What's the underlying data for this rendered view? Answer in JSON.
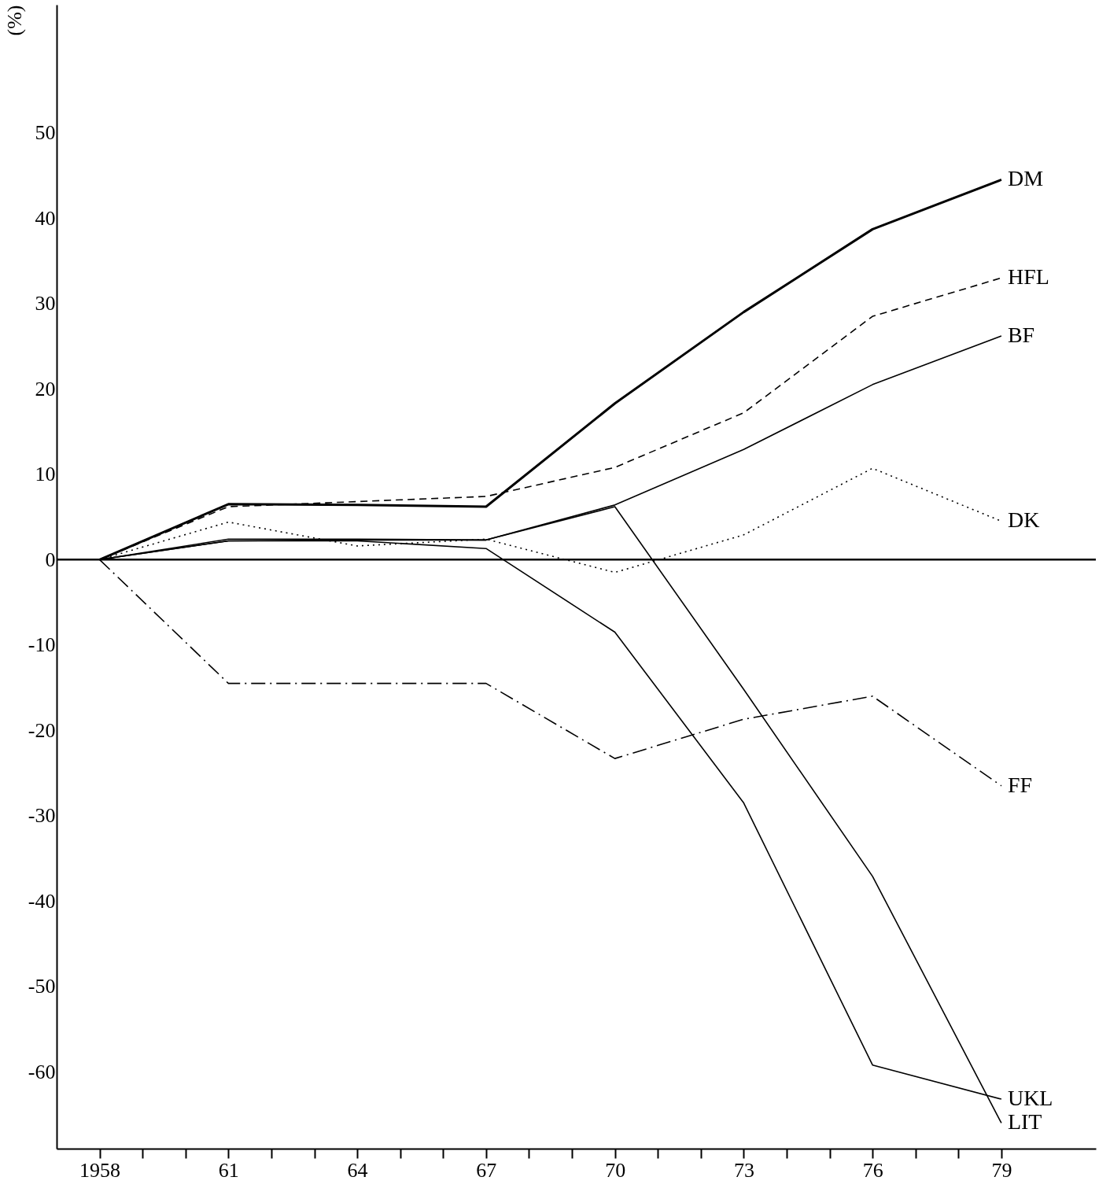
{
  "chart_data": {
    "type": "line",
    "ylabel": "(%)",
    "x": [
      1958,
      1961,
      1964,
      1967,
      1970,
      1973,
      1976,
      1979
    ],
    "series": [
      {
        "name": "DM",
        "color": "#000000",
        "line_style": "solid",
        "values": [
          0,
          6.5,
          6.4,
          6.2,
          18.3,
          29,
          38.7,
          44.5
        ]
      },
      {
        "name": "HFL",
        "color": "#000000",
        "line_style": "dashed",
        "values": [
          0,
          6.2,
          6.8,
          7.4,
          10.8,
          17.2,
          28.5,
          33
        ]
      },
      {
        "name": "BF",
        "color": "#000000",
        "line_style": "solid",
        "values": [
          0,
          2.4,
          2.4,
          2.3,
          6.4,
          12.9,
          20.5,
          26.2
        ]
      },
      {
        "name": "DK",
        "color": "#000000",
        "line_style": "dotted",
        "values": [
          0,
          4.4,
          1.6,
          2.4,
          -1.5,
          2.9,
          10.7,
          4.5
        ]
      },
      {
        "name": "FF",
        "color": "#000000",
        "line_style": "dashdot",
        "values": [
          0,
          -14.5,
          -14.5,
          -14.5,
          -23.3,
          -18.7,
          -16,
          -26.5
        ]
      },
      {
        "name": "UKL",
        "color": "#000000",
        "line_style": "solid",
        "values": [
          0,
          2.2,
          2.2,
          1.3,
          -8.5,
          -28.5,
          -59.2,
          -63.2
        ]
      },
      {
        "name": "LIT",
        "color": "#000000",
        "line_style": "solid",
        "values": [
          0,
          2.2,
          2.3,
          2.3,
          6.2,
          -15.2,
          -37.1,
          -66
        ]
      }
    ],
    "xlim": [
      1957,
      1981.2
    ],
    "ylim": [
      -69,
      65
    ],
    "xticks": [
      1958,
      {
        "value": 1959,
        "label": null
      },
      {
        "value": 1960,
        "label": null
      },
      {
        "value": 1961,
        "label": "61"
      },
      {
        "value": 1962,
        "label": null
      },
      {
        "value": 1963,
        "label": null
      },
      {
        "value": 1964,
        "label": "64"
      },
      {
        "value": 1965,
        "label": null
      },
      {
        "value": 1966,
        "label": null
      },
      {
        "value": 1967,
        "label": "67"
      },
      {
        "value": 1968,
        "label": null
      },
      {
        "value": 1969,
        "label": null
      },
      {
        "value": 1970,
        "label": "70"
      },
      {
        "value": 1971,
        "label": null
      },
      {
        "value": 1972,
        "label": null
      },
      {
        "value": 1973,
        "label": "73"
      },
      {
        "value": 1974,
        "label": null
      },
      {
        "value": 1975,
        "label": null
      },
      {
        "value": 1976,
        "label": "76"
      },
      {
        "value": 1977,
        "label": null
      },
      {
        "value": 1978,
        "label": null
      },
      {
        "value": 1979,
        "label": "79"
      }
    ],
    "yticks": [
      -60,
      -50,
      -40,
      -30,
      -20,
      -10,
      0,
      10,
      20,
      30,
      40,
      50
    ],
    "ref_lines": [
      {
        "axis": "y",
        "value": 0,
        "color": "#000000",
        "line_style": "solid"
      }
    ],
    "grid": false,
    "legend": false,
    "marker": "none"
  }
}
